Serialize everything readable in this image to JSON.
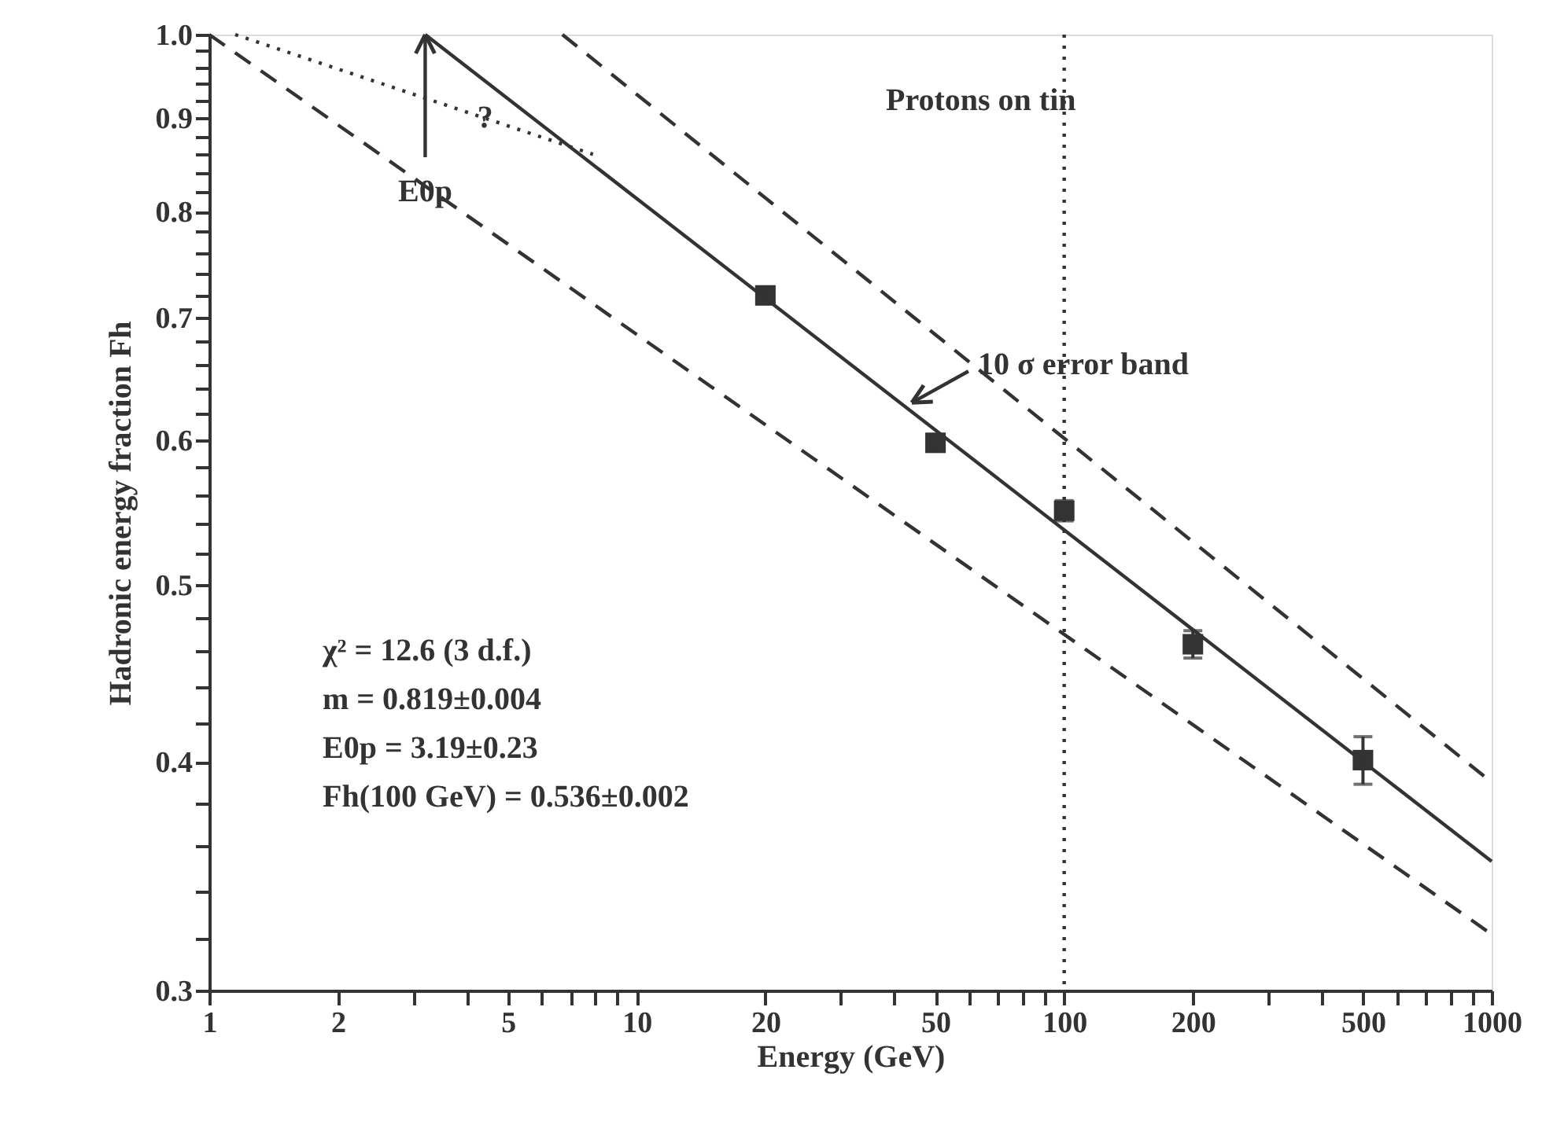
{
  "chart_data": {
    "type": "scatter",
    "xlabel": "Energy (GeV)",
    "ylabel": "Hadronic energy fraction Fh",
    "log": "xy",
    "grid": false,
    "xlim": [
      1,
      1000
    ],
    "ylim": [
      0.3,
      1.0
    ],
    "xticks": [
      1,
      2,
      {
        "value": 3,
        "label": null
      },
      {
        "value": 4,
        "label": null
      },
      5,
      {
        "value": 6,
        "label": null
      },
      {
        "value": 7,
        "label": null
      },
      {
        "value": 8,
        "label": null
      },
      {
        "value": 9,
        "label": null
      },
      10,
      20,
      {
        "value": 30,
        "label": null
      },
      {
        "value": 40,
        "label": null
      },
      50,
      {
        "value": 60,
        "label": null
      },
      {
        "value": 70,
        "label": null
      },
      {
        "value": 80,
        "label": null
      },
      {
        "value": 90,
        "label": null
      },
      100,
      200,
      {
        "value": 300,
        "label": null
      },
      {
        "value": 400,
        "label": null
      },
      500,
      {
        "value": 600,
        "label": null
      },
      {
        "value": 700,
        "label": null
      },
      {
        "value": 800,
        "label": null
      },
      {
        "value": 900,
        "label": null
      },
      1000
    ],
    "yticks": [
      0.3,
      {
        "value": 0.32,
        "label": null
      },
      {
        "value": 0.34,
        "label": null
      },
      {
        "value": 0.36,
        "label": null
      },
      {
        "value": 0.38,
        "label": null
      },
      0.4,
      {
        "value": 0.42,
        "label": null
      },
      {
        "value": 0.44,
        "label": null
      },
      {
        "value": 0.46,
        "label": null
      },
      {
        "value": 0.48,
        "label": null
      },
      0.5,
      {
        "value": 0.52,
        "label": null
      },
      {
        "value": 0.54,
        "label": null
      },
      {
        "value": 0.56,
        "label": null
      },
      {
        "value": 0.58,
        "label": null
      },
      0.6,
      {
        "value": 0.62,
        "label": null
      },
      {
        "value": 0.64,
        "label": null
      },
      {
        "value": 0.66,
        "label": null
      },
      {
        "value": 0.68,
        "label": null
      },
      0.7,
      {
        "value": 0.72,
        "label": null
      },
      {
        "value": 0.74,
        "label": null
      },
      {
        "value": 0.76,
        "label": null
      },
      {
        "value": 0.78,
        "label": null
      },
      0.8,
      {
        "value": 0.82,
        "label": null
      },
      {
        "value": 0.84,
        "label": null
      },
      {
        "value": 0.86,
        "label": null
      },
      {
        "value": 0.88,
        "label": null
      },
      0.9,
      {
        "value": 0.92,
        "label": null
      },
      {
        "value": 0.94,
        "label": null
      },
      {
        "value": 0.96,
        "label": null
      },
      {
        "value": 0.98,
        "label": null
      },
      {
        "value": 1.0,
        "label": "1.0"
      }
    ],
    "series": [
      {
        "marker": "square",
        "color": "#333333",
        "x": [
          20,
          50,
          100,
          200,
          500
        ],
        "values": [
          0.72,
          0.598,
          0.549,
          0.464,
          0.401
        ],
        "errors": [
          0.006,
          0.006,
          0.007,
          0.008,
          0.012
        ]
      },
      {
        "type": "line",
        "line_style": "solid",
        "color": "#333333",
        "x": [
          3.2,
          1000
        ],
        "values": [
          1.0,
          0.353
        ]
      },
      {
        "type": "line",
        "line_style": "dotted",
        "color": "#333333",
        "x": [
          1.15,
          7.9
        ],
        "values": [
          1.0,
          0.86
        ]
      },
      {
        "type": "line",
        "line_style": "dashed",
        "color": "#333333",
        "x": [
          6.7,
          1000
        ],
        "values": [
          1.0,
          0.39
        ]
      },
      {
        "type": "line",
        "line_style": "dashed",
        "color": "#333333",
        "x": [
          1,
          1000
        ],
        "values": [
          1.0,
          0.322
        ]
      }
    ],
    "ref_lines": [
      {
        "axis": "x",
        "value": 100,
        "line_style": "dotted",
        "color": "#333333"
      }
    ],
    "annotations": [
      "Protons on tin",
      "χ² = 12.6 (3 d.f.)",
      "m = 0.819±0.004",
      "E0p = 3.19±0.23",
      "Fh(100 GeV) = 0.536±0.002",
      {
        "text": "10 σ error band",
        "x": 44,
        "y": 0.629
      },
      {
        "text": "?",
        "x": 4.2,
        "y": 0.9
      },
      {
        "text": "E0p",
        "x": 3.2,
        "y": 1.0
      }
    ]
  }
}
